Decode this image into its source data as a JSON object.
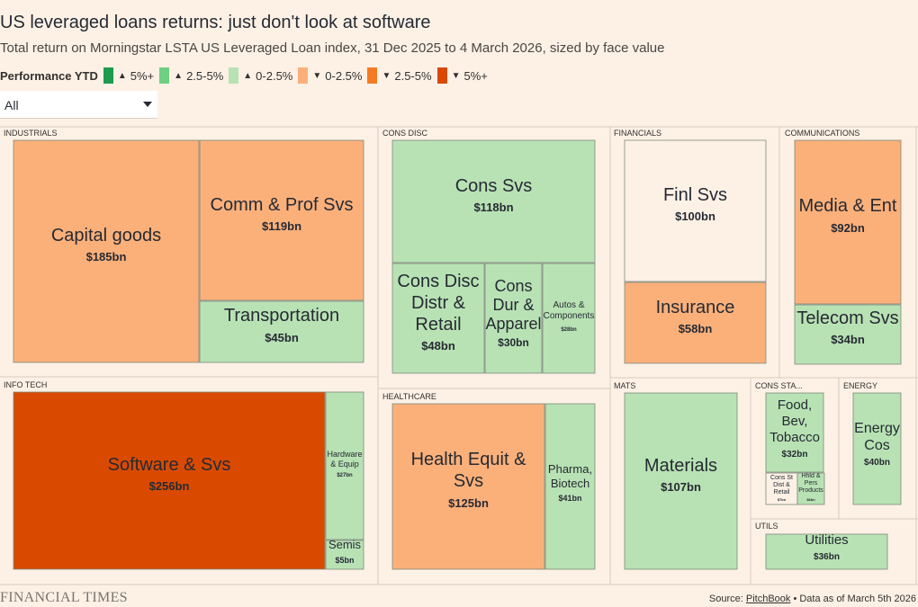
{
  "header": {
    "title": "US leveraged loans returns: just don't look at software",
    "subtitle": "Total return on Morningstar LSTA US Leveraged Loan index, 31 Dec 2025 to 4 March 2026, sized by face value"
  },
  "legend": {
    "title": "Performance YTD",
    "items": [
      {
        "arrow": "▲",
        "label": "5%+",
        "color": "#1e9b4c"
      },
      {
        "arrow": "▲",
        "label": "2.5-5%",
        "color": "#6fcf82"
      },
      {
        "arrow": "▲",
        "label": "0-2.5%",
        "color": "#b8e2b4"
      },
      {
        "arrow": "▼",
        "label": "0-2.5%",
        "color": "#fbb07a"
      },
      {
        "arrow": "▼",
        "label": "2.5-5%",
        "color": "#f57a24"
      },
      {
        "arrow": "▼",
        "label": "5%+",
        "color": "#d94a00"
      }
    ]
  },
  "filter": {
    "selected": "All"
  },
  "footer": {
    "brand": "FINANCIAL TIMES",
    "source_prefix": "Source: ",
    "source_link": "PitchBook",
    "source_suffix": " • Data as of March 5th 2026"
  },
  "chart_data": {
    "type": "treemap",
    "title": "US leveraged loans returns: just don't look at software",
    "size_unit": "face value ($bn)",
    "color_metric": "Performance YTD",
    "sectors": [
      {
        "name": "INDUSTRIALS",
        "industries": [
          {
            "name": "Capital goods",
            "value": 185,
            "label": "$185bn",
            "performance": "▼ 0-2.5%",
            "color": "#fbb07a"
          },
          {
            "name": "Comm & Prof Svs",
            "value": 119,
            "label": "$119bn",
            "performance": "▼ 0-2.5%",
            "color": "#fbb07a"
          },
          {
            "name": "Transportation",
            "value": 45,
            "label": "$45bn",
            "performance": "▲ 0-2.5%",
            "color": "#b8e2b4"
          }
        ]
      },
      {
        "name": "CONS DISC",
        "industries": [
          {
            "name": "Cons Svs",
            "value": 118,
            "label": "$118bn",
            "performance": "▲ 0-2.5%",
            "color": "#b8e2b4"
          },
          {
            "name": "Cons Disc Distr & Retail",
            "value": 48,
            "label": "$48bn",
            "performance": "▲ 0-2.5%",
            "color": "#b8e2b4"
          },
          {
            "name": "Cons Dur & Apparel",
            "value": 30,
            "label": "$30bn",
            "performance": "▲ 0-2.5%",
            "color": "#b8e2b4"
          },
          {
            "name": "Autos & Components",
            "value": 28,
            "label": "$28bn",
            "performance": "▲ 0-2.5%",
            "color": "#b8e2b4"
          }
        ]
      },
      {
        "name": "FINANCIALS",
        "industries": [
          {
            "name": "Finl Svs",
            "value": 100,
            "label": "$100bn",
            "performance": "flat",
            "color": "#fdf1e6"
          },
          {
            "name": "Insurance",
            "value": 58,
            "label": "$58bn",
            "performance": "▼ 0-2.5%",
            "color": "#fbb07a"
          }
        ]
      },
      {
        "name": "COMMUNICATIONS",
        "industries": [
          {
            "name": "Media & Ent",
            "value": 92,
            "label": "$92bn",
            "performance": "▼ 0-2.5%",
            "color": "#fbb07a"
          },
          {
            "name": "Telecom Svs",
            "value": 34,
            "label": "$34bn",
            "performance": "▲ 0-2.5%",
            "color": "#b8e2b4"
          }
        ]
      },
      {
        "name": "INFO TECH",
        "industries": [
          {
            "name": "Software & Svs",
            "value": 256,
            "label": "$256bn",
            "performance": "▼ 5%+",
            "color": "#d94a00"
          },
          {
            "name": "Hardware & Equip",
            "value": 27,
            "label": "$27bn",
            "performance": "▲ 0-2.5%",
            "color": "#b8e2b4"
          },
          {
            "name": "Semis",
            "value": 5,
            "label": "$5bn",
            "performance": "▲ 0-2.5%",
            "color": "#b8e2b4"
          }
        ]
      },
      {
        "name": "HEALTHCARE",
        "industries": [
          {
            "name": "Health Equit & Svs",
            "value": 125,
            "label": "$125bn",
            "performance": "▼ 0-2.5%",
            "color": "#fbb07a"
          },
          {
            "name": "Pharma, Biotech",
            "value": 41,
            "label": "$41bn",
            "performance": "▲ 0-2.5%",
            "color": "#b8e2b4"
          }
        ]
      },
      {
        "name": "MATS",
        "industries": [
          {
            "name": "Materials",
            "value": 107,
            "label": "$107bn",
            "performance": "▲ 0-2.5%",
            "color": "#b8e2b4"
          }
        ]
      },
      {
        "name": "CONS STA...",
        "industries": [
          {
            "name": "Food, Bev, Tobacco",
            "value": 32,
            "label": "$32bn",
            "performance": "▲ 0-2.5%",
            "color": "#b8e2b4"
          },
          {
            "name": "Cons St Dist & Retail",
            "value": 7,
            "label": "$7bn",
            "performance": "flat",
            "color": "#fdf1e6"
          },
          {
            "name": "Hhld & Pers Products",
            "value": 6,
            "label": "$6bn",
            "performance": "▲ 0-2.5%",
            "color": "#b8e2b4"
          }
        ]
      },
      {
        "name": "ENERGY",
        "industries": [
          {
            "name": "Energy Cos",
            "value": 40,
            "label": "$40bn",
            "performance": "▲ 0-2.5%",
            "color": "#b8e2b4"
          }
        ]
      },
      {
        "name": "UTILS",
        "industries": [
          {
            "name": "Utilities",
            "value": 36,
            "label": "$36bn",
            "performance": "▲ 0-2.5%",
            "color": "#b8e2b4"
          }
        ]
      }
    ]
  }
}
